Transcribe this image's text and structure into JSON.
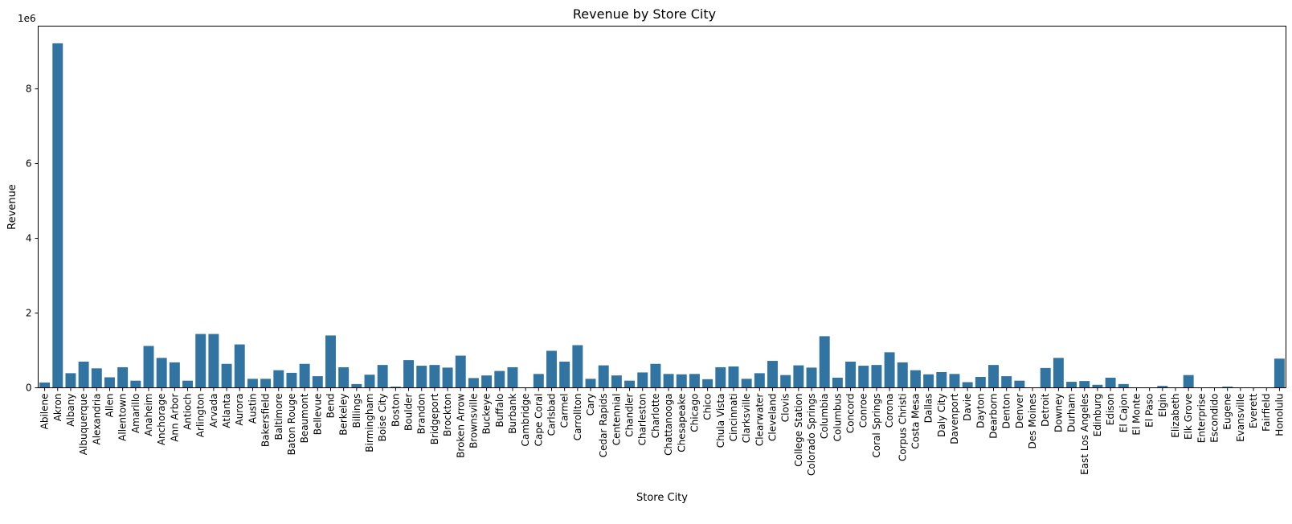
{
  "chart_data": {
    "type": "bar",
    "title": "Revenue by Store City",
    "xlabel": "Store City",
    "ylabel": "Revenue",
    "offset_label": "1e6",
    "ylim": [
      0,
      9680000
    ],
    "yticks": [
      0,
      2000000,
      4000000,
      6000000,
      8000000
    ],
    "ytick_labels": [
      "0",
      "2",
      "4",
      "6",
      "8"
    ],
    "bar_color": "#3274a1",
    "grid": false,
    "categories": [
      "Abilene",
      "Akron",
      "Albany",
      "Albuquerque",
      "Alexandria",
      "Allen",
      "Allentown",
      "Amarillo",
      "Anaheim",
      "Anchorage",
      "Ann Arbor",
      "Antioch",
      "Arlington",
      "Arvada",
      "Atlanta",
      "Aurora",
      "Austin",
      "Bakersfield",
      "Baltimore",
      "Baton Rouge",
      "Beaumont",
      "Bellevue",
      "Bend",
      "Berkeley",
      "Billings",
      "Birmingham",
      "Boise City",
      "Boston",
      "Boulder",
      "Brandon",
      "Bridgeport",
      "Brockton",
      "Broken Arrow",
      "Brownsville",
      "Buckeye",
      "Buffalo",
      "Burbank",
      "Cambridge",
      "Cape Coral",
      "Carlsbad",
      "Carmel",
      "Carrollton",
      "Cary",
      "Cedar Rapids",
      "Centennial",
      "Chandler",
      "Charleston",
      "Charlotte",
      "Chattanooga",
      "Chesapeake",
      "Chicago",
      "Chico",
      "Chula Vista",
      "Cincinnati",
      "Clarksville",
      "Clearwater",
      "Cleveland",
      "Clovis",
      "College Station",
      "Colorado Springs",
      "Columbia",
      "Columbus",
      "Concord",
      "Conroe",
      "Coral Springs",
      "Corona",
      "Corpus Christi",
      "Costa Mesa",
      "Dallas",
      "Daly City",
      "Davenport",
      "Davie",
      "Dayton",
      "Dearborn",
      "Denton",
      "Denver",
      "Des Moines",
      "Detroit",
      "Downey",
      "Durham",
      "East Los Angeles",
      "Edinburg",
      "Edison",
      "El Cajon",
      "El Monte",
      "El Paso",
      "Elgin",
      "Elizabeth",
      "Elk Grove",
      "Enterprise",
      "Escondido",
      "Eugene",
      "Evansville",
      "Everett",
      "Fairfield",
      "Honolulu"
    ],
    "values": [
      140000,
      9220000,
      390000,
      700000,
      520000,
      280000,
      550000,
      190000,
      1120000,
      800000,
      680000,
      190000,
      1440000,
      1440000,
      640000,
      1160000,
      240000,
      240000,
      470000,
      400000,
      640000,
      310000,
      1400000,
      550000,
      100000,
      350000,
      610000,
      30000,
      740000,
      590000,
      610000,
      540000,
      860000,
      260000,
      330000,
      450000,
      550000,
      0,
      370000,
      990000,
      700000,
      1140000,
      240000,
      600000,
      330000,
      190000,
      410000,
      640000,
      370000,
      360000,
      370000,
      230000,
      550000,
      570000,
      240000,
      390000,
      720000,
      340000,
      600000,
      540000,
      1380000,
      270000,
      700000,
      590000,
      610000,
      950000,
      680000,
      470000,
      360000,
      420000,
      370000,
      150000,
      290000,
      610000,
      310000,
      190000,
      0,
      530000,
      800000,
      160000,
      180000,
      80000,
      270000,
      100000,
      0,
      0,
      50000,
      0,
      340000,
      0,
      0,
      30000,
      0,
      0,
      0,
      780000
    ]
  }
}
